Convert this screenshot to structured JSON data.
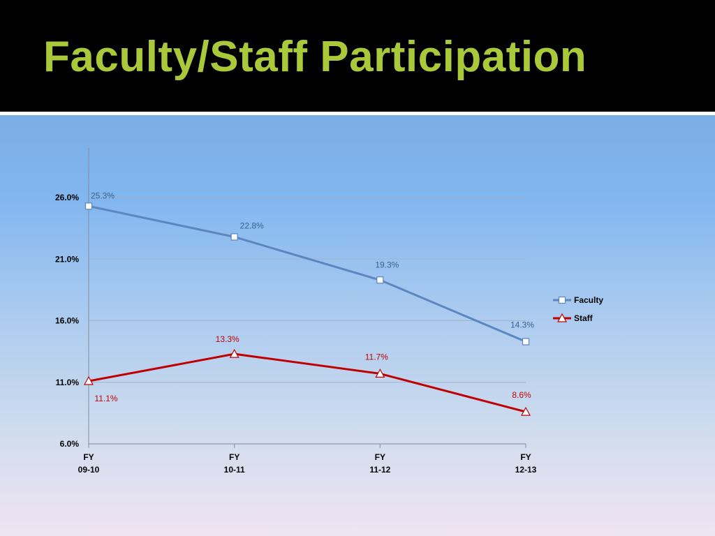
{
  "slide": {
    "title": "Faculty/Staff Participation"
  },
  "colors": {
    "title": "#a9c93b",
    "faculty": "#5b86c0",
    "staff": "#c00000",
    "faculty_label": "#3a5f94",
    "staff_label": "#c00000"
  },
  "chart_data": {
    "type": "line",
    "title": "",
    "xlabel": "",
    "ylabel": "",
    "categories": [
      [
        "FY",
        "09-10"
      ],
      [
        "FY",
        "10-11"
      ],
      [
        "FY",
        "11-12"
      ],
      [
        "FY",
        "12-13"
      ]
    ],
    "ylim": [
      6.0,
      30.0
    ],
    "yticks": [
      6.0,
      11.0,
      16.0,
      21.0,
      26.0
    ],
    "ytick_labels": [
      "6.0%",
      "11.0%",
      "16.0%",
      "21.0%",
      "26.0%"
    ],
    "grid": true,
    "legend_position": "right",
    "series": [
      {
        "name": "Faculty",
        "marker": "square",
        "values": [
          25.3,
          22.8,
          19.3,
          14.3
        ],
        "labels": [
          "25.3%",
          "22.8%",
          "19.3%",
          "14.3%"
        ]
      },
      {
        "name": "Staff",
        "marker": "triangle",
        "values": [
          11.1,
          13.3,
          11.7,
          8.6
        ],
        "labels": [
          "11.1%",
          "13.3%",
          "11.7%",
          "8.6%"
        ]
      }
    ]
  }
}
